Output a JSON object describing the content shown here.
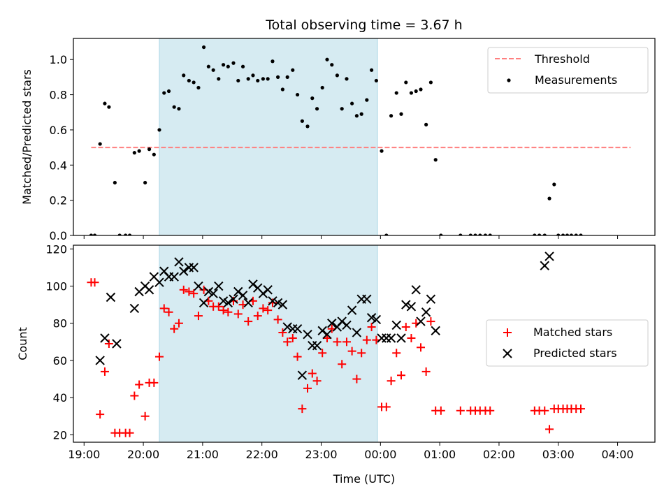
{
  "chart_data": [
    {
      "type": "scatter",
      "title": "Total observing time = 3.67 h",
      "xlabel": "",
      "ylabel": "Matched/Predicted stars",
      "xlim": [
        18.82,
        28.63
      ],
      "ylim": [
        0,
        1.12
      ],
      "xtick_values": [
        19,
        20,
        21,
        22,
        23,
        24,
        25,
        26,
        27,
        28
      ],
      "ytick_values": [
        0.0,
        0.2,
        0.4,
        0.6,
        0.8,
        1.0
      ],
      "ytick_labels": [
        "0.0",
        "0.2",
        "0.4",
        "0.6",
        "0.8",
        "1.0"
      ],
      "shaded_region": {
        "x_start": 20.27,
        "x_end": 23.95,
        "color": "#add8e6"
      },
      "legend": {
        "location": "upper right",
        "entries": [
          "Threshold",
          "Measurements"
        ]
      },
      "series": [
        {
          "name": "Threshold",
          "style": "dashed-line",
          "color": "#ff7f7f",
          "x": [
            19.12,
            28.22
          ],
          "y": [
            0.5,
            0.5
          ]
        },
        {
          "name": "Measurements",
          "style": "dot",
          "color": "#000000",
          "x": [
            19.12,
            19.18,
            19.27,
            19.35,
            19.42,
            19.52,
            19.6,
            19.7,
            19.77,
            19.85,
            19.93,
            20.03,
            20.1,
            20.18,
            20.27,
            20.35,
            20.43,
            20.52,
            20.6,
            20.68,
            20.77,
            20.85,
            20.93,
            21.02,
            21.1,
            21.18,
            21.27,
            21.35,
            21.43,
            21.52,
            21.6,
            21.68,
            21.77,
            21.85,
            21.93,
            22.02,
            22.1,
            22.18,
            22.27,
            22.35,
            22.43,
            22.52,
            22.6,
            22.68,
            22.77,
            22.85,
            22.93,
            23.02,
            23.1,
            23.18,
            23.27,
            23.35,
            23.43,
            23.52,
            23.6,
            23.68,
            23.77,
            23.85,
            23.93,
            24.02,
            24.1,
            24.18,
            24.27,
            24.35,
            24.43,
            24.52,
            24.6,
            24.68,
            24.77,
            24.85,
            24.93,
            25.02,
            25.35,
            25.52,
            25.6,
            25.68,
            25.77,
            25.85,
            26.6,
            26.68,
            26.77,
            26.85,
            26.93,
            27.0,
            27.08,
            27.15,
            27.22,
            27.3,
            27.38
          ],
          "y": [
            0.0,
            0.0,
            0.52,
            0.75,
            0.73,
            0.3,
            0.0,
            0.0,
            0.0,
            0.47,
            0.48,
            0.3,
            0.49,
            0.46,
            0.6,
            0.81,
            0.82,
            0.73,
            0.72,
            0.91,
            0.88,
            0.87,
            0.84,
            1.07,
            0.96,
            0.94,
            0.89,
            0.97,
            0.96,
            0.98,
            0.88,
            0.96,
            0.89,
            0.91,
            0.88,
            0.89,
            0.89,
            0.99,
            0.9,
            0.83,
            0.9,
            0.94,
            0.8,
            0.65,
            0.62,
            0.78,
            0.72,
            0.84,
            1.0,
            0.97,
            0.91,
            0.72,
            0.89,
            0.75,
            0.68,
            0.69,
            0.77,
            0.94,
            0.88,
            0.48,
            0.0,
            0.68,
            0.81,
            0.69,
            0.87,
            0.81,
            0.82,
            0.83,
            0.63,
            0.87,
            0.43,
            0.0,
            0.0,
            0.0,
            0.0,
            0.0,
            0.0,
            0.0,
            0.0,
            0.0,
            0.0,
            0.21,
            0.29,
            0.0,
            0.0,
            0.0,
            0.0,
            0.0,
            0.0
          ]
        }
      ]
    },
    {
      "type": "scatter",
      "title": "",
      "xlabel": "Time (UTC)",
      "ylabel": "Count",
      "xlim": [
        18.82,
        28.63
      ],
      "ylim": [
        16,
        122
      ],
      "xtick_values": [
        19,
        20,
        21,
        22,
        23,
        24,
        25,
        26,
        27,
        28
      ],
      "xtick_labels": [
        "19:00",
        "20:00",
        "21:00",
        "22:00",
        "23:00",
        "00:00",
        "01:00",
        "02:00",
        "03:00",
        "04:00"
      ],
      "ytick_values": [
        20,
        40,
        60,
        80,
        100,
        120
      ],
      "ytick_labels": [
        "20",
        "40",
        "60",
        "80",
        "100",
        "120"
      ],
      "shaded_region": {
        "x_start": 20.27,
        "x_end": 23.95,
        "color": "#add8e6"
      },
      "legend": {
        "location": "center right",
        "entries": [
          "Matched stars",
          "Predicted stars"
        ]
      },
      "series": [
        {
          "name": "Matched stars",
          "style": "plus",
          "color": "#ff0000",
          "x": [
            19.12,
            19.18,
            19.27,
            19.35,
            19.42,
            19.52,
            19.6,
            19.7,
            19.77,
            19.85,
            19.93,
            20.03,
            20.1,
            20.18,
            20.27,
            20.35,
            20.43,
            20.52,
            20.6,
            20.68,
            20.77,
            20.85,
            20.93,
            21.02,
            21.1,
            21.18,
            21.27,
            21.35,
            21.43,
            21.52,
            21.6,
            21.68,
            21.77,
            21.85,
            21.93,
            22.02,
            22.1,
            22.18,
            22.27,
            22.35,
            22.43,
            22.52,
            22.6,
            22.68,
            22.77,
            22.85,
            22.93,
            23.02,
            23.1,
            23.18,
            23.27,
            23.35,
            23.43,
            23.52,
            23.6,
            23.68,
            23.77,
            23.85,
            23.93,
            24.02,
            24.1,
            24.18,
            24.27,
            24.35,
            24.43,
            24.52,
            24.6,
            24.68,
            24.77,
            24.85,
            24.93,
            25.02,
            25.35,
            25.52,
            25.6,
            25.68,
            25.77,
            25.85,
            26.6,
            26.68,
            26.77,
            26.85,
            26.93,
            27.0,
            27.08,
            27.15,
            27.22,
            27.3,
            27.38
          ],
          "y": [
            102,
            102,
            31,
            54,
            69,
            21,
            21,
            21,
            21,
            41,
            47,
            30,
            48,
            48,
            62,
            88,
            86,
            77,
            80,
            98,
            97,
            96,
            84,
            98,
            92,
            89,
            89,
            87,
            86,
            92,
            85,
            90,
            81,
            92,
            84,
            88,
            87,
            91,
            82,
            75,
            70,
            72,
            62,
            34,
            45,
            53,
            49,
            64,
            72,
            77,
            70,
            58,
            70,
            65,
            50,
            64,
            71,
            78,
            71,
            35,
            35,
            49,
            64,
            52,
            78,
            72,
            80,
            67,
            54,
            81,
            33,
            33,
            33,
            33,
            33,
            33,
            33,
            33,
            33,
            33,
            33,
            23,
            34,
            34,
            34,
            34,
            34,
            34,
            34
          ]
        },
        {
          "name": "Predicted stars",
          "style": "cross",
          "color": "#000000",
          "x": [
            19.27,
            19.35,
            19.45,
            19.55,
            19.85,
            19.93,
            20.03,
            20.1,
            20.18,
            20.27,
            20.35,
            20.43,
            20.52,
            20.6,
            20.68,
            20.77,
            20.85,
            20.93,
            21.02,
            21.1,
            21.18,
            21.27,
            21.35,
            21.43,
            21.52,
            21.6,
            21.68,
            21.77,
            21.85,
            21.93,
            22.02,
            22.1,
            22.18,
            22.27,
            22.35,
            22.43,
            22.52,
            22.6,
            22.68,
            22.77,
            22.85,
            22.93,
            23.02,
            23.1,
            23.18,
            23.27,
            23.35,
            23.43,
            23.52,
            23.6,
            23.68,
            23.77,
            23.85,
            23.93,
            24.02,
            24.1,
            24.18,
            24.27,
            24.35,
            24.43,
            24.52,
            24.6,
            24.68,
            24.77,
            24.85,
            24.93,
            26.77,
            26.85
          ],
          "y": [
            60,
            72,
            94,
            69,
            88,
            97,
            100,
            98,
            105,
            102,
            108,
            105,
            105,
            113,
            108,
            110,
            110,
            100,
            91,
            97,
            96,
            100,
            92,
            91,
            93,
            97,
            95,
            91,
            101,
            99,
            96,
            98,
            92,
            91,
            90,
            78,
            77,
            77,
            52,
            74,
            68,
            68,
            76,
            74,
            80,
            78,
            81,
            79,
            87,
            75,
            93,
            93,
            83,
            82,
            72,
            72,
            72,
            79,
            72,
            90,
            89,
            98,
            81,
            86,
            93,
            76,
            111,
            116
          ]
        }
      ]
    }
  ]
}
